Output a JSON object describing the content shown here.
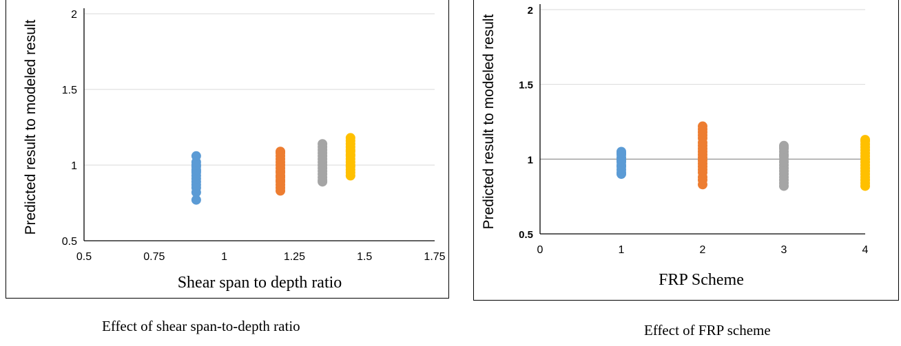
{
  "captions": {
    "left": "Effect of shear span-to-depth ratio",
    "right": "Effect of FRP scheme"
  },
  "chart_data": [
    {
      "type": "scatter",
      "title": "",
      "xlabel": "Shear span to depth ratio",
      "ylabel": "Predicted result to modeled result",
      "xlim": [
        0.5,
        1.75
      ],
      "ylim": [
        0.5,
        2
      ],
      "xticks": [
        0.5,
        0.75,
        1,
        1.25,
        1.5,
        1.75
      ],
      "yticks": [
        0.5,
        1,
        1.5,
        2
      ],
      "xtick_labels": [
        "0.5",
        "0.75",
        "1",
        "1.25",
        "1.5",
        "1.75"
      ],
      "ytick_labels": [
        "0.5",
        "1",
        "1.5",
        "2"
      ],
      "grid": true,
      "legend": "none",
      "series": [
        {
          "color": "#5B9BD5",
          "x": [
            0.9,
            0.9,
            0.9,
            0.9,
            0.9,
            0.9,
            0.9,
            0.9,
            0.9,
            0.9,
            0.9,
            0.9,
            0.9,
            0.9
          ],
          "y": [
            0.77,
            0.82,
            0.85,
            0.87,
            0.89,
            0.91,
            0.93,
            0.95,
            0.96,
            0.97,
            0.99,
            1.0,
            1.02,
            1.06
          ]
        },
        {
          "color": "#ED7D31",
          "x": [
            1.2,
            1.2,
            1.2,
            1.2,
            1.2,
            1.2,
            1.2,
            1.2,
            1.2,
            1.2,
            1.2,
            1.2,
            1.2,
            1.2,
            1.2,
            1.2
          ],
          "y": [
            0.83,
            0.85,
            0.87,
            0.89,
            0.9,
            0.92,
            0.93,
            0.95,
            0.96,
            0.98,
            1.0,
            1.02,
            1.04,
            1.06,
            1.08,
            1.09
          ]
        },
        {
          "color": "#A5A5A5",
          "x": [
            1.35,
            1.35,
            1.35,
            1.35,
            1.35,
            1.35,
            1.35,
            1.35,
            1.35,
            1.35,
            1.35,
            1.35,
            1.35,
            1.35
          ],
          "y": [
            0.89,
            0.9,
            0.92,
            0.94,
            0.96,
            0.98,
            1.0,
            1.02,
            1.04,
            1.06,
            1.08,
            1.1,
            1.12,
            1.14
          ]
        },
        {
          "color": "#FFC000",
          "x": [
            1.45,
            1.45,
            1.45,
            1.45,
            1.45,
            1.45,
            1.45,
            1.45,
            1.45,
            1.45,
            1.45,
            1.45,
            1.45,
            1.45,
            1.45
          ],
          "y": [
            0.93,
            0.95,
            0.97,
            0.99,
            1.0,
            1.02,
            1.04,
            1.06,
            1.07,
            1.09,
            1.1,
            1.12,
            1.14,
            1.16,
            1.18
          ]
        }
      ]
    },
    {
      "type": "scatter",
      "title": "",
      "xlabel": "FRP Scheme",
      "ylabel": "Predicted result to modeled result",
      "xlim": [
        0,
        4
      ],
      "ylim": [
        0.5,
        2
      ],
      "xticks": [
        0,
        1,
        2,
        3,
        4
      ],
      "yticks": [
        0.5,
        1,
        1.5,
        2
      ],
      "xtick_labels": [
        "0",
        "1",
        "2",
        "3",
        "4"
      ],
      "ytick_labels": [
        "0.5",
        "1",
        "1.5",
        "2"
      ],
      "grid": true,
      "legend": "none",
      "series": [
        {
          "color": "#5B9BD5",
          "x": [
            1,
            1,
            1,
            1,
            1,
            1,
            1,
            1,
            1,
            1,
            1,
            1
          ],
          "y": [
            0.9,
            0.91,
            0.93,
            0.95,
            0.96,
            0.98,
            0.99,
            1.0,
            1.01,
            1.03,
            1.04,
            1.05
          ]
        },
        {
          "color": "#ED7D31",
          "x": [
            2,
            2,
            2,
            2,
            2,
            2,
            2,
            2,
            2,
            2,
            2,
            2,
            2,
            2,
            2,
            2,
            2,
            2,
            2
          ],
          "y": [
            0.83,
            0.86,
            0.88,
            0.91,
            0.93,
            0.95,
            0.97,
            0.99,
            1.01,
            1.03,
            1.05,
            1.07,
            1.09,
            1.11,
            1.14,
            1.16,
            1.18,
            1.2,
            1.22
          ]
        },
        {
          "color": "#A5A5A5",
          "x": [
            3,
            3,
            3,
            3,
            3,
            3,
            3,
            3,
            3,
            3,
            3,
            3,
            3,
            3,
            3,
            3
          ],
          "y": [
            0.82,
            0.84,
            0.86,
            0.88,
            0.9,
            0.92,
            0.94,
            0.96,
            0.98,
            1.0,
            1.02,
            1.03,
            1.05,
            1.07,
            1.08,
            1.09
          ]
        },
        {
          "color": "#FFC000",
          "x": [
            4,
            4,
            4,
            4,
            4,
            4,
            4,
            4,
            4,
            4,
            4,
            4,
            4,
            4,
            4,
            4,
            4
          ],
          "y": [
            0.82,
            0.84,
            0.86,
            0.88,
            0.9,
            0.92,
            0.94,
            0.96,
            0.98,
            1.0,
            1.02,
            1.04,
            1.06,
            1.08,
            1.1,
            1.12,
            1.13
          ]
        }
      ]
    }
  ]
}
